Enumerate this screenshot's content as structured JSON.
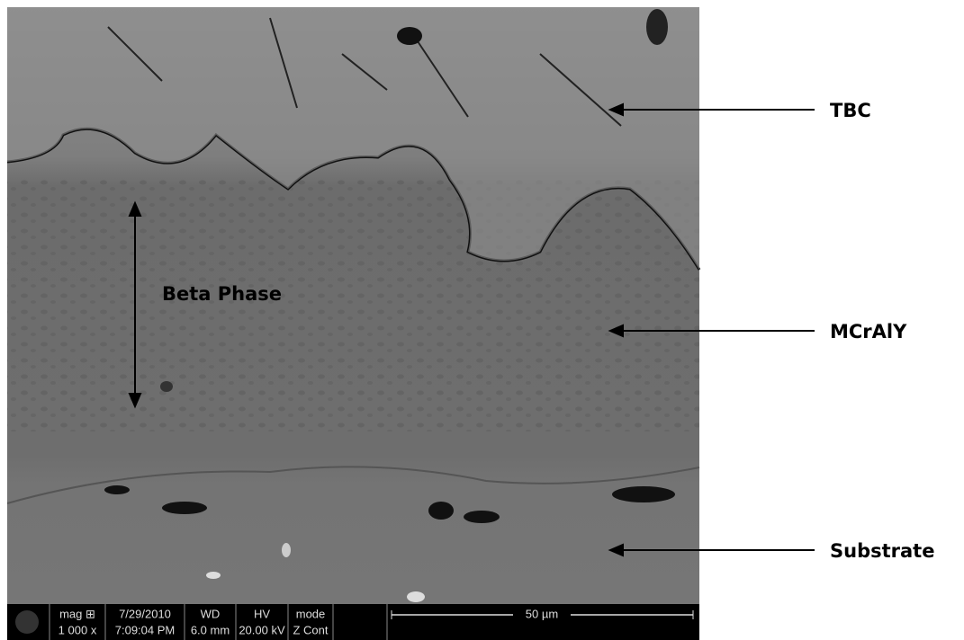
{
  "annotations": {
    "tbc": "TBC",
    "mcraly": "MCrAlY",
    "substrate": "Substrate",
    "beta_phase": "Beta Phase"
  },
  "info_bar": {
    "headers": [
      "mag ⊞",
      "7/29/2010",
      "WD",
      "HV",
      "mode"
    ],
    "values": [
      "1 000 x",
      "7:09:04 PM",
      "6.0 mm",
      "20.00 kV",
      "Z Cont"
    ],
    "scale": "50 µm"
  }
}
